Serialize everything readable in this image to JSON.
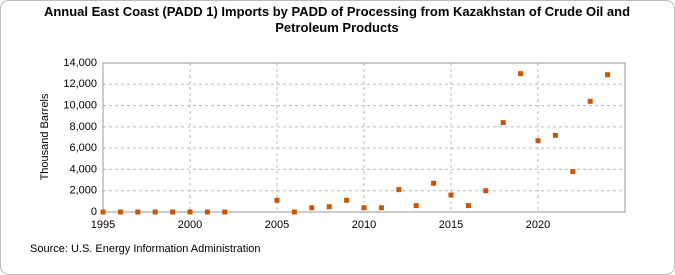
{
  "chart_data": {
    "type": "scatter",
    "title": "Annual East Coast (PADD 1) Imports by PADD of Processing from Kazakhstan of Crude Oil and Petroleum Products",
    "y_label": "Thousand Barrels",
    "source": "Source: U.S. Energy Information Administration",
    "x": [
      1995,
      1996,
      1997,
      1998,
      1999,
      2000,
      2001,
      2002,
      2005,
      2006,
      2007,
      2008,
      2009,
      2010,
      2011,
      2012,
      2013,
      2014,
      2015,
      2016,
      2017,
      2018,
      2019,
      2020,
      2021,
      2022,
      2023,
      2024
    ],
    "values": [
      0,
      0,
      0,
      0,
      0,
      0,
      0,
      0,
      1100,
      0,
      400,
      500,
      1100,
      400,
      400,
      2100,
      600,
      2700,
      1600,
      600,
      2000,
      8400,
      13000,
      6700,
      7200,
      3800,
      10400,
      12900
    ],
    "color": "#cc5500",
    "xlim": [
      1995,
      2025
    ],
    "xticks": [
      1995,
      2000,
      2005,
      2010,
      2015,
      2020
    ],
    "ylim": [
      0,
      14000
    ],
    "yticks": [
      0,
      {
        "value": 2000,
        "label": "2,000"
      },
      {
        "value": 4000,
        "label": "4,000"
      },
      {
        "value": 6000,
        "label": "6,000"
      },
      {
        "value": 8000,
        "label": "8,000"
      },
      {
        "value": 10000,
        "label": "10,000"
      },
      {
        "value": 12000,
        "label": "12,000"
      },
      {
        "value": 14000,
        "label": "14,000"
      }
    ],
    "grid": true
  }
}
